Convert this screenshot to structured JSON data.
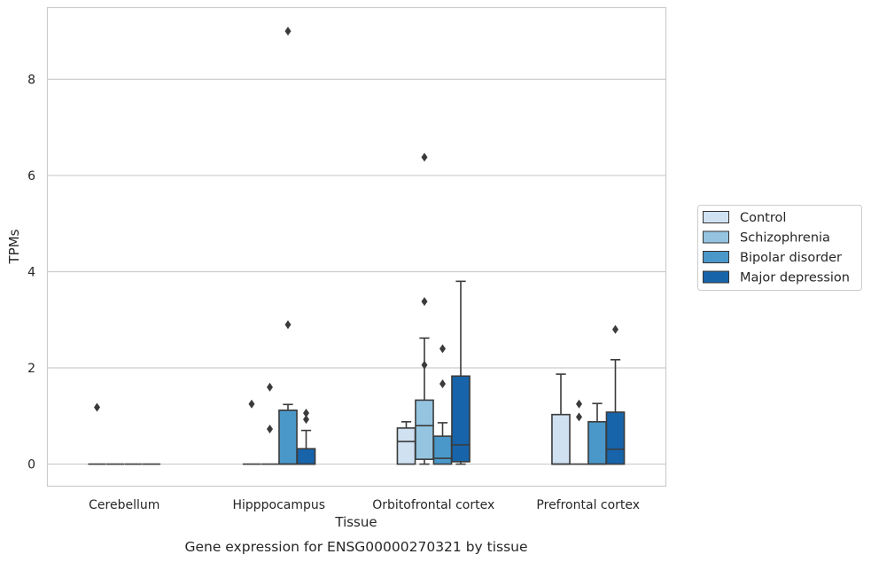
{
  "chart_data": {
    "type": "box",
    "title": "",
    "caption": "Gene expression for ENSG00000270321 by tissue",
    "xlabel": "Tissue",
    "ylabel": "TPMs",
    "ylim": [
      -0.45,
      9.5
    ],
    "yticks": [
      0,
      2,
      4,
      6,
      8
    ],
    "grid": "horizontal",
    "legend_position": "right",
    "categories": [
      "Cerebellum",
      "Hipppocampus",
      "Orbitofrontal cortex",
      "Prefrontal cortex"
    ],
    "series": [
      {
        "name": "Control",
        "color": "#d0e1f2",
        "boxes": [
          {
            "q1": 0,
            "median": 0,
            "q3": 0,
            "whisker_low": 0,
            "whisker_high": 0,
            "outliers": [
              1.18
            ]
          },
          {
            "q1": 0,
            "median": 0,
            "q3": 0,
            "whisker_low": 0,
            "whisker_high": 0,
            "outliers": [
              1.25
            ]
          },
          {
            "q1": 0,
            "median": 0.47,
            "q3": 0.75,
            "whisker_low": 0,
            "whisker_high": 0.88,
            "outliers": []
          },
          {
            "q1": 0,
            "median": 0,
            "q3": 1.03,
            "whisker_low": 0,
            "whisker_high": 1.87,
            "outliers": []
          }
        ]
      },
      {
        "name": "Schizophrenia",
        "color": "#94c4df",
        "boxes": [
          {
            "q1": 0,
            "median": 0,
            "q3": 0,
            "whisker_low": 0,
            "whisker_high": 0,
            "outliers": []
          },
          {
            "q1": 0,
            "median": 0,
            "q3": 0,
            "whisker_low": 0,
            "whisker_high": 0,
            "outliers": [
              0.73,
              1.6
            ]
          },
          {
            "q1": 0.1,
            "median": 0.8,
            "q3": 1.33,
            "whisker_low": 0,
            "whisker_high": 2.62,
            "outliers": [
              2.06,
              3.38,
              6.38
            ]
          },
          {
            "q1": 0,
            "median": 0,
            "q3": 0,
            "whisker_low": 0,
            "whisker_high": 0,
            "outliers": [
              0.98,
              1.25
            ]
          }
        ]
      },
      {
        "name": "Bipolar disorder",
        "color": "#4a98c9",
        "boxes": [
          {
            "q1": 0,
            "median": 0,
            "q3": 0,
            "whisker_low": 0,
            "whisker_high": 0,
            "outliers": []
          },
          {
            "q1": 0,
            "median": 0,
            "q3": 1.12,
            "whisker_low": 0,
            "whisker_high": 1.24,
            "outliers": [
              2.9,
              9.0
            ]
          },
          {
            "q1": 0,
            "median": 0.12,
            "q3": 0.58,
            "whisker_low": 0,
            "whisker_high": 0.86,
            "outliers": [
              1.67,
              2.4
            ]
          },
          {
            "q1": 0,
            "median": 0,
            "q3": 0.88,
            "whisker_low": 0,
            "whisker_high": 1.26,
            "outliers": []
          }
        ]
      },
      {
        "name": "Major depression",
        "color": "#1764ab",
        "boxes": [
          {
            "q1": 0,
            "median": 0,
            "q3": 0,
            "whisker_low": 0,
            "whisker_high": 0,
            "outliers": []
          },
          {
            "q1": 0,
            "median": 0,
            "q3": 0.32,
            "whisker_low": 0,
            "whisker_high": 0.7,
            "outliers": [
              0.93,
              1.06
            ]
          },
          {
            "q1": 0.05,
            "median": 0.4,
            "q3": 1.83,
            "whisker_low": 0,
            "whisker_high": 3.8,
            "outliers": []
          },
          {
            "q1": 0,
            "median": 0.31,
            "q3": 1.08,
            "whisker_low": 0,
            "whisker_high": 2.17,
            "outliers": [
              2.8
            ]
          }
        ]
      }
    ]
  }
}
